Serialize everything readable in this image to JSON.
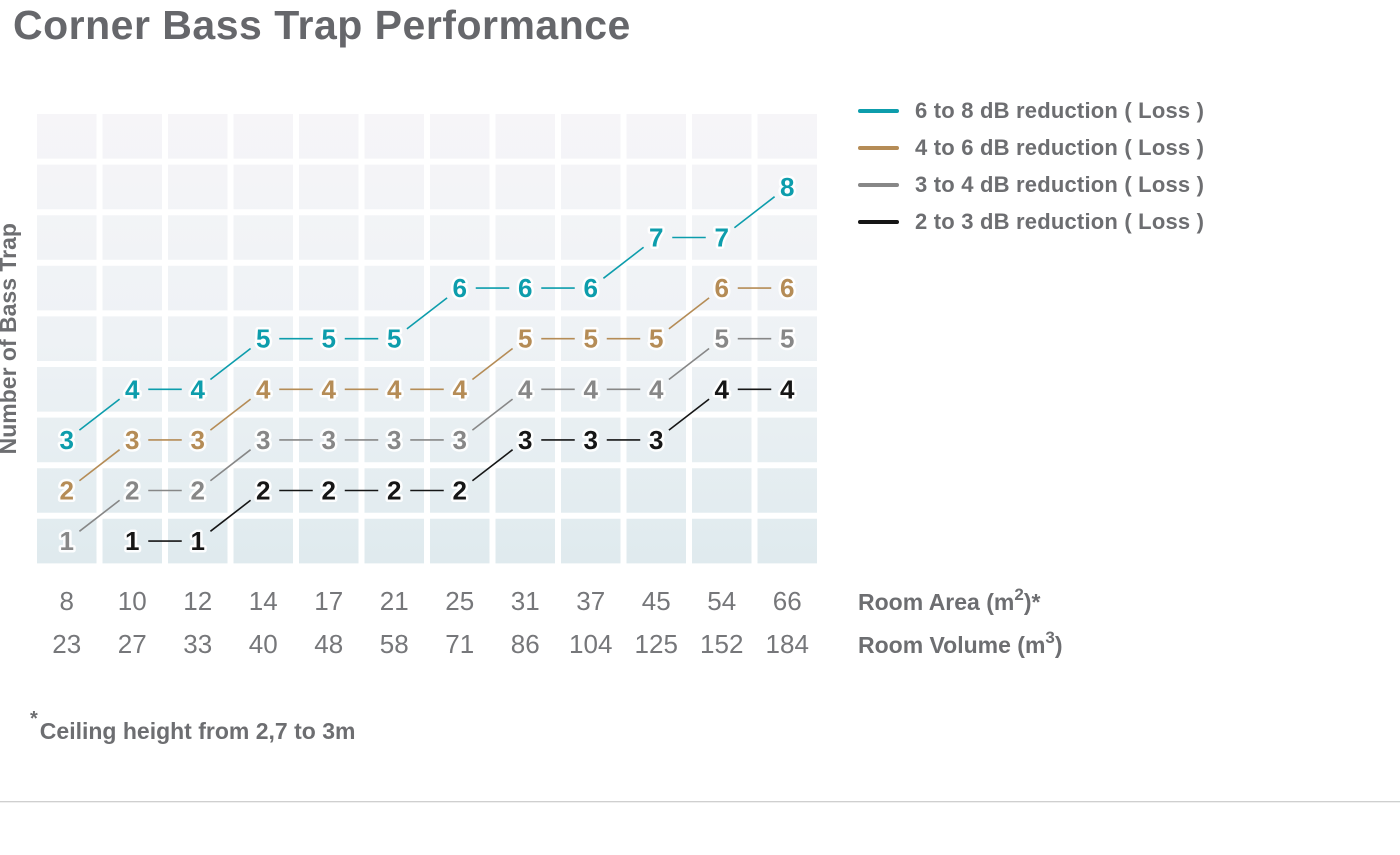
{
  "title": "Corner Bass Trap Performance",
  "footnote": {
    "marker": "*",
    "text": "Ceiling height from 2,7 to 3m"
  },
  "colors": {
    "title_text": "#66676b",
    "legend_text": "#6d6e71",
    "tick_text": "#76777a",
    "axis_name_text": "#6d6e71",
    "grid_line": "#ffffff",
    "plot_bg_top": "#f6f5f8",
    "plot_bg_mid": "#eef2f5",
    "plot_bg_bottom": "#dfeaee",
    "divider": "#cfcfcf"
  },
  "chart_data": {
    "type": "line",
    "title": "Corner Bass Trap Performance",
    "ylabel": "Number of Bass Trap",
    "ylim": [
      0.5,
      9.5
    ],
    "grid": true,
    "legend_position": "top-right",
    "point_labels": true,
    "x_axis_rows": [
      {
        "name_prefix": "Room Area (m",
        "name_sup": "2",
        "name_suffix": ")*",
        "labels": [
          "8",
          "10",
          "12",
          "14",
          "17",
          "21",
          "25",
          "31",
          "37",
          "45",
          "54",
          "66"
        ]
      },
      {
        "name_prefix": "Room Volume (m",
        "name_sup": "3",
        "name_suffix": ")",
        "labels": [
          "23",
          "27",
          "33",
          "40",
          "48",
          "58",
          "71",
          "86",
          "104",
          "125",
          "152",
          "184"
        ]
      }
    ],
    "series": [
      {
        "name": "6 to 8 dB reduction ( Loss )",
        "color": "#0d9dac",
        "values": [
          3,
          4,
          4,
          5,
          5,
          5,
          6,
          6,
          6,
          7,
          7,
          8
        ]
      },
      {
        "name": "4 to 6 dB reduction ( Loss )",
        "color": "#b58c56",
        "values": [
          2,
          3,
          3,
          4,
          4,
          4,
          4,
          5,
          5,
          5,
          6,
          6
        ]
      },
      {
        "name": "3 to 4 dB reduction ( Loss )",
        "color": "#878787",
        "values": [
          1,
          2,
          2,
          3,
          3,
          3,
          3,
          4,
          4,
          4,
          5,
          5
        ]
      },
      {
        "name": "2 to 3 dB reduction ( Loss )",
        "color": "#161616",
        "values": [
          null,
          1,
          1,
          2,
          2,
          2,
          2,
          3,
          3,
          3,
          4,
          4
        ]
      }
    ]
  }
}
